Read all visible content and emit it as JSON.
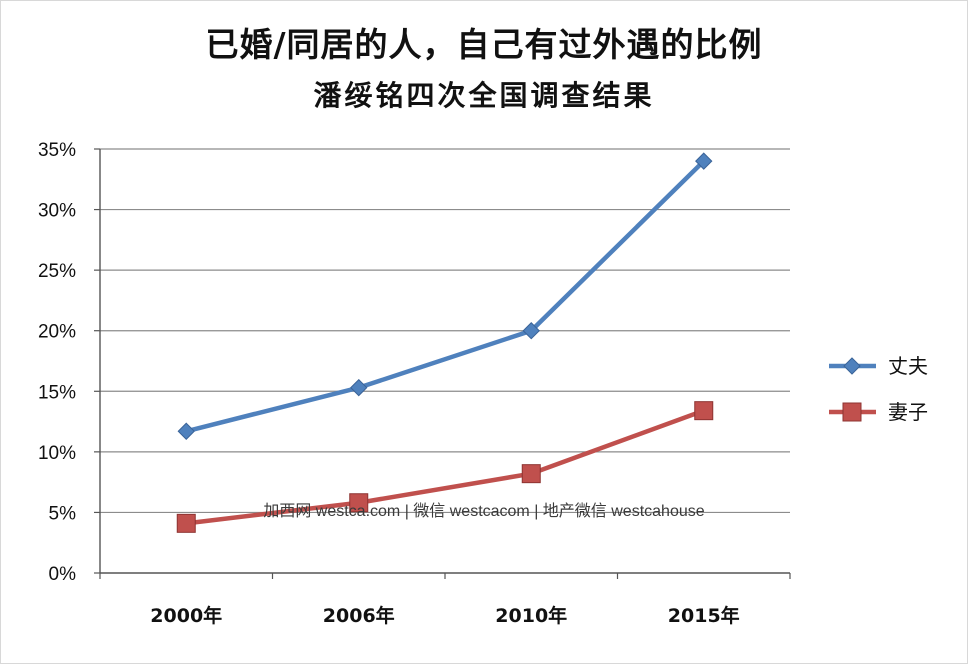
{
  "chart_data": {
    "type": "line",
    "title": "已婚/同居的人，自己有过外遇的比例",
    "subtitle": "潘绥铭四次全国调查结果",
    "categories": [
      "2000年",
      "2006年",
      "2010年",
      "2015年"
    ],
    "ylim": [
      0,
      35
    ],
    "yticks": [
      "0%",
      "5%",
      "10%",
      "15%",
      "20%",
      "25%",
      "30%",
      "35%"
    ],
    "ytick_values": [
      0,
      5,
      10,
      15,
      20,
      25,
      30,
      35
    ],
    "grid": true,
    "legend_position": "right",
    "series": [
      {
        "name": "丈夫",
        "values": [
          11.7,
          15.3,
          20.0,
          34.0
        ],
        "color": "#4f81bd",
        "marker": "diamond"
      },
      {
        "name": "妻子",
        "values": [
          4.1,
          5.8,
          8.2,
          13.4
        ],
        "color": "#c0504d",
        "marker": "square"
      }
    ]
  },
  "watermark": "加西网 westca.com | 微信 westcacom | 地产微信 westcahouse"
}
